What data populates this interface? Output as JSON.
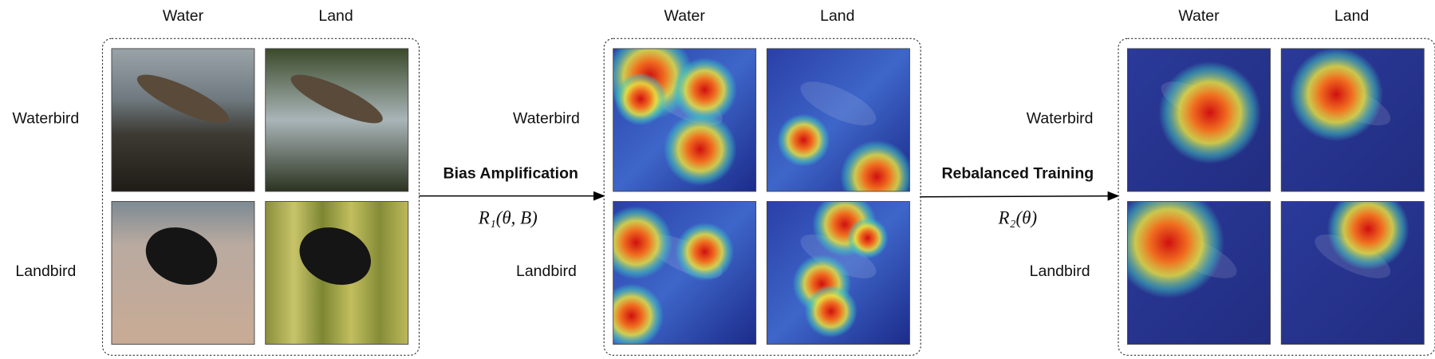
{
  "panels": [
    {
      "columns": [
        "Water",
        "Land"
      ],
      "rows": [
        "Waterbird",
        "Landbird"
      ]
    },
    {
      "columns": [
        "Water",
        "Land"
      ],
      "rows": [
        "Waterbird",
        "Landbird"
      ]
    },
    {
      "columns": [
        "Water",
        "Land"
      ],
      "rows": [
        "Waterbird",
        "Landbird"
      ]
    }
  ],
  "arrows": [
    {
      "label": "Bias Amplification",
      "formula": "R₁(θ, B)"
    },
    {
      "label": "Rebalanced Training",
      "formula": "R₂(θ)"
    }
  ]
}
